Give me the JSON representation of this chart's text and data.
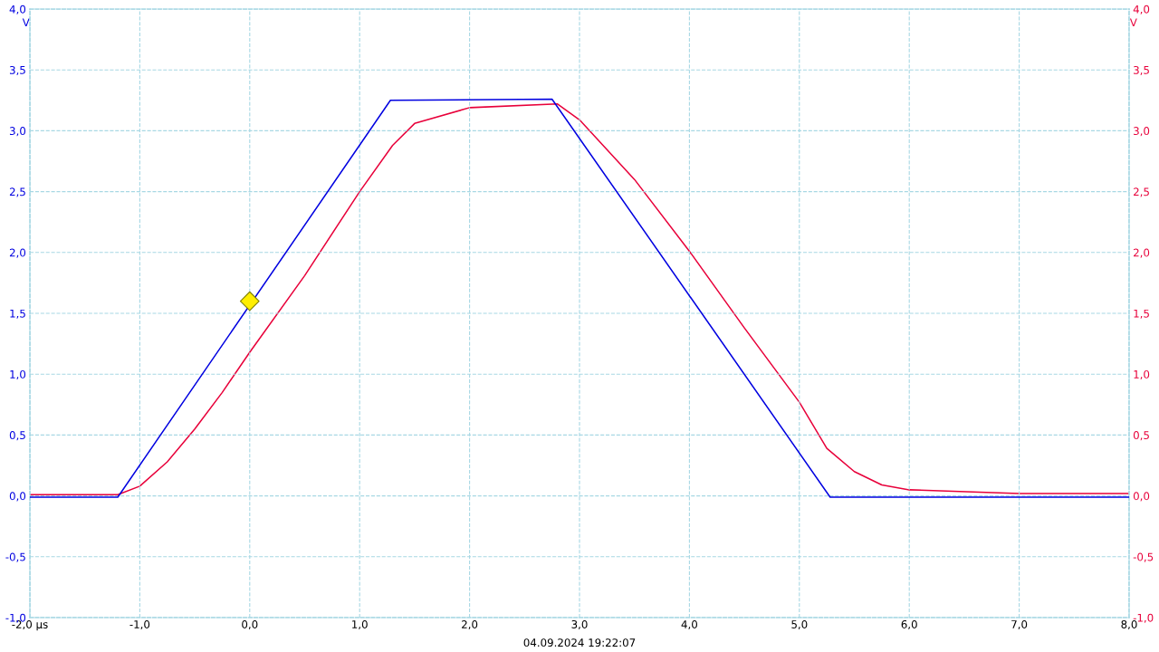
{
  "chart_data": {
    "type": "line",
    "xlim": [
      -2,
      8
    ],
    "xticks": [
      {
        "value": -2,
        "label": "-2,0 µs"
      },
      {
        "value": -1,
        "label": "-1,0"
      },
      {
        "value": 0,
        "label": "0,0"
      },
      {
        "value": 1,
        "label": "1,0"
      },
      {
        "value": 2,
        "label": "2,0"
      },
      {
        "value": 3,
        "label": "3,0"
      },
      {
        "value": 4,
        "label": "4,0"
      },
      {
        "value": 5,
        "label": "5,0"
      },
      {
        "value": 6,
        "label": "6,0"
      },
      {
        "value": 7,
        "label": "7,0"
      },
      {
        "value": 8,
        "label": "8,0"
      }
    ],
    "ylim": [
      -1,
      4
    ],
    "yticks": [
      {
        "value": -1,
        "label": "-1,0"
      },
      {
        "value": -0.5,
        "label": "-0,5"
      },
      {
        "value": 0,
        "label": "0,0"
      },
      {
        "value": 0.5,
        "label": "0,5"
      },
      {
        "value": 1,
        "label": "1,0"
      },
      {
        "value": 1.5,
        "label": "1,5"
      },
      {
        "value": 2,
        "label": "2,0"
      },
      {
        "value": 2.5,
        "label": "2,5"
      },
      {
        "value": 3,
        "label": "3,0"
      },
      {
        "value": 3.5,
        "label": "3,5"
      },
      {
        "value": 4,
        "label": "4,0"
      }
    ],
    "y2lim": [
      -1,
      4
    ],
    "y2ticks": [
      {
        "value": -1,
        "label": "-1,0"
      },
      {
        "value": -0.5,
        "label": "-0,5"
      },
      {
        "value": 0,
        "label": "0,0"
      },
      {
        "value": 0.5,
        "label": "0,5"
      },
      {
        "value": 1,
        "label": "1,0"
      },
      {
        "value": 1.5,
        "label": "1,5"
      },
      {
        "value": 2,
        "label": "2,0"
      },
      {
        "value": 2.5,
        "label": "2,5"
      },
      {
        "value": 3,
        "label": "3,0"
      },
      {
        "value": 3.5,
        "label": "3,5"
      },
      {
        "value": 4,
        "label": "4,0"
      }
    ],
    "ylabel": "V",
    "y2label": "V",
    "grid": true,
    "marker": "none",
    "annotations": [
      "04.09.2024 19:22:07"
    ],
    "series": [
      {
        "color": "#e8003a",
        "axis": "y2",
        "x": [
          -2,
          -1.5,
          -1.2,
          -1,
          -0.75,
          -0.5,
          -0.25,
          0,
          0.5,
          1,
          1.3,
          1.5,
          2,
          2.8,
          3,
          3.5,
          4,
          4.5,
          5,
          5.25,
          5.5,
          5.75,
          6,
          7,
          8
        ],
        "values": [
          0.01,
          0.01,
          0.01,
          0.08,
          0.28,
          0.55,
          0.85,
          1.18,
          1.81,
          2.5,
          2.88,
          3.06,
          3.19,
          3.22,
          3.09,
          2.6,
          2.01,
          1.38,
          0.77,
          0.39,
          0.2,
          0.09,
          0.05,
          0.02,
          0.02
        ]
      },
      {
        "color": "#0000e0",
        "x": [
          -2,
          -1.2,
          1.28,
          2.75,
          5.28,
          8
        ],
        "values": [
          -0.01,
          -0.01,
          3.25,
          3.26,
          -0.01,
          -0.01
        ]
      },
      {
        "type": "scatter",
        "color": "#ffee00",
        "marker": "diamond",
        "x": [
          0
        ],
        "values": [
          1.6
        ]
      }
    ]
  }
}
